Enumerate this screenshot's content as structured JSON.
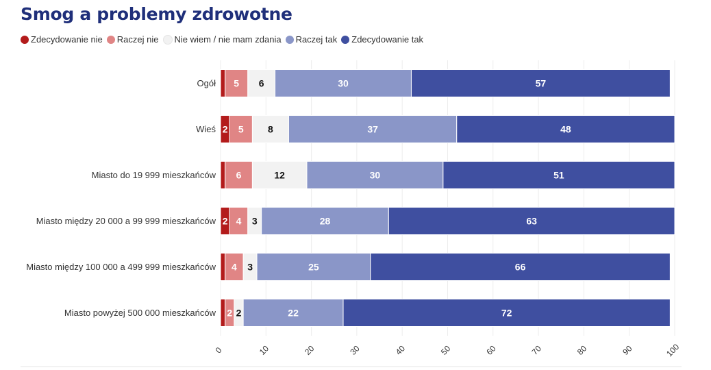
{
  "chart_data": {
    "type": "bar",
    "orientation": "horizontal",
    "stacked": true,
    "title": "Smog a problemy zdrowotne",
    "categories": [
      "Ogół",
      "Wieś",
      "Miasto do 19 999 mieszkańców",
      "Miasto między 20 000 a 99 999 mieszkańców",
      "Miasto między 100 000 a 499 999 mieszkańców",
      "Miasto powyżej 500 000 mieszkańców"
    ],
    "series": [
      {
        "name": "Zdecydowanie nie",
        "color": "#b31b1b",
        "label_color": "#ffffff",
        "values": [
          1,
          2,
          1,
          2,
          1,
          1
        ]
      },
      {
        "name": "Raczej nie",
        "color": "#e08585",
        "label_color": "#ffffff",
        "values": [
          5,
          5,
          6,
          4,
          4,
          2
        ]
      },
      {
        "name": "Nie wiem / nie mam zdania",
        "color": "#f2f2f2",
        "label_color": "#111111",
        "values": [
          6,
          8,
          12,
          3,
          3,
          2
        ]
      },
      {
        "name": "Raczej tak",
        "color": "#8a96c8",
        "label_color": "#ffffff",
        "values": [
          30,
          37,
          30,
          28,
          25,
          22
        ]
      },
      {
        "name": "Zdecydowanie tak",
        "color": "#3f4fa0",
        "label_color": "#ffffff",
        "values": [
          57,
          48,
          51,
          63,
          66,
          72
        ]
      }
    ],
    "xlim": [
      0,
      100
    ],
    "xticks": [
      0,
      10,
      20,
      30,
      40,
      50,
      60,
      70,
      80,
      90,
      100
    ],
    "legend_position": "top-left",
    "grid": true
  }
}
